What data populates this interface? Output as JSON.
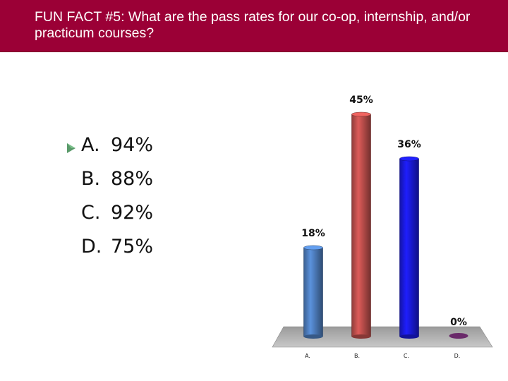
{
  "slide": {
    "title": "FUN FACT #5: What are the pass rates for our co-op, internship, and/or practicum courses?"
  },
  "options": [
    {
      "letter": "A.",
      "value": "94%"
    },
    {
      "letter": "B.",
      "value": "88%"
    },
    {
      "letter": "C.",
      "value": "92%"
    },
    {
      "letter": "D.",
      "value": "75%"
    }
  ],
  "chart_data": {
    "type": "bar",
    "categories": [
      "A.",
      "B.",
      "C.",
      "D."
    ],
    "values": [
      18,
      45,
      36,
      0
    ],
    "labels": [
      "18%",
      "45%",
      "36%",
      "0%"
    ],
    "colors": [
      "#4f7fc0",
      "#c0504d",
      "#1a1adc",
      "#6a2a6a"
    ],
    "title": "",
    "xlabel": "",
    "ylabel": "",
    "ylim": [
      0,
      45
    ],
    "grid": false,
    "style": "3d-cylinder"
  },
  "colors": {
    "title_bar": "#9b0036",
    "title_text": "#ffffff",
    "bullet": "#5a9a6a"
  }
}
